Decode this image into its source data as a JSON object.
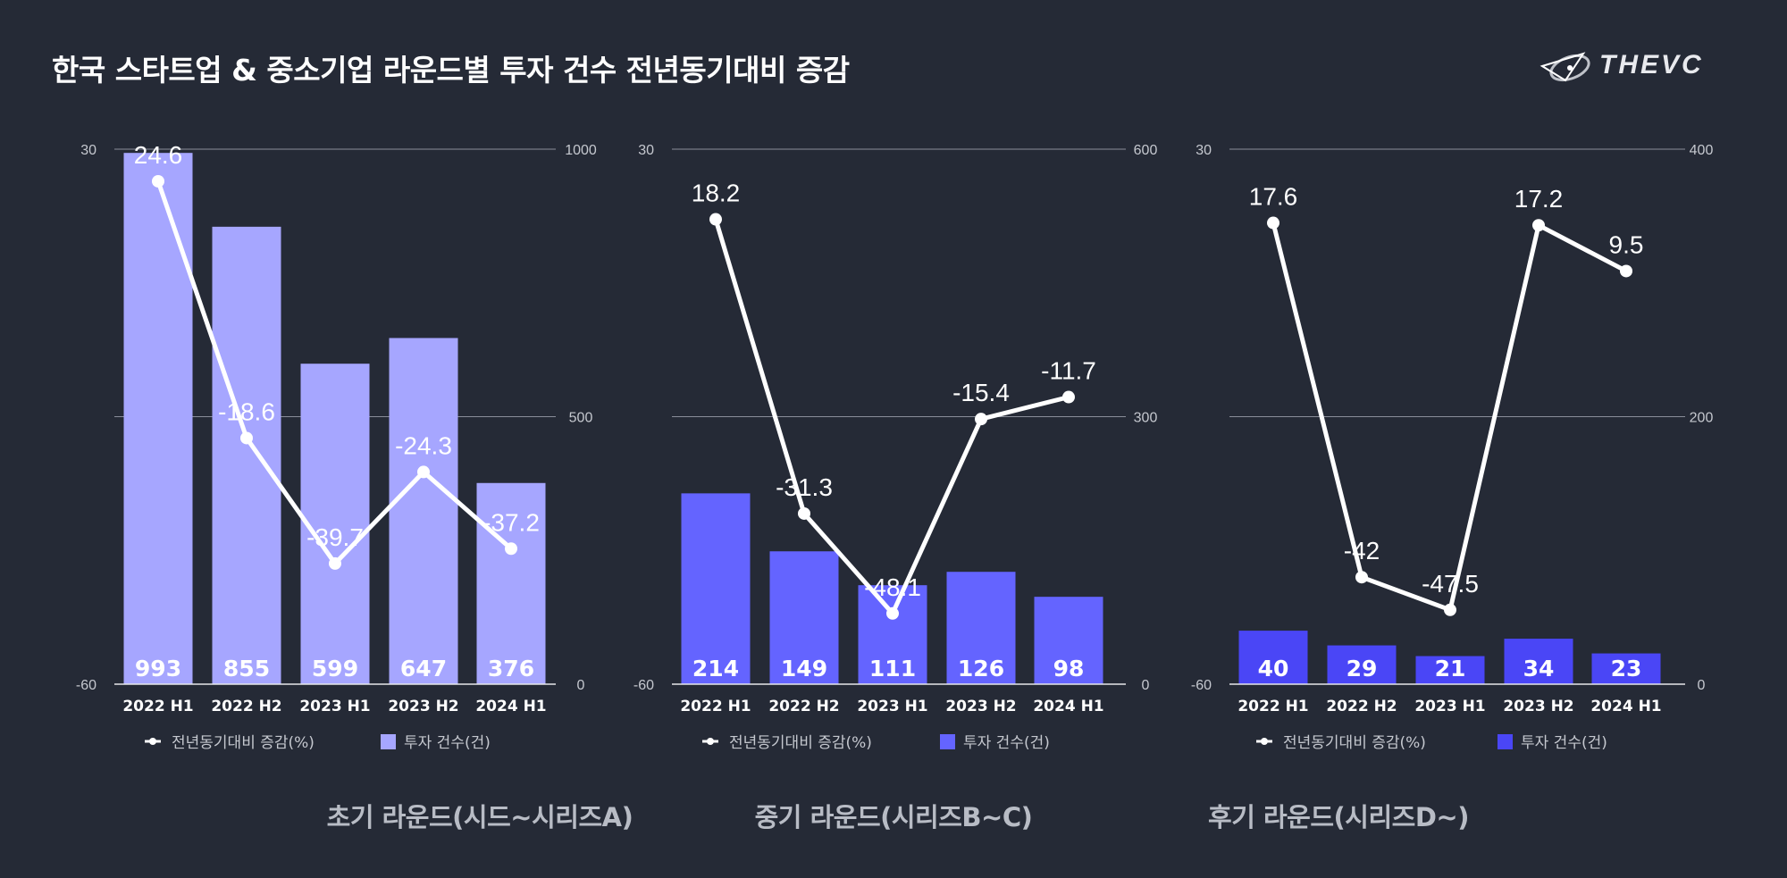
{
  "title": "한국 스타트업 & 중소기업 라운드별 투자 건수 전년동기대비 증감",
  "logo": {
    "text": "THEVC"
  },
  "colors": {
    "background": "#252a36",
    "line": "#ffffff",
    "grid": "#8a8e99",
    "axis_text": "#c5c8cf",
    "category_text": "#ffffff"
  },
  "chart_data": [
    {
      "type": "bar",
      "panel_label": "초기 라운드(시드~시리즈A)",
      "categories": [
        "2022 H1",
        "2022 H2",
        "2023 H1",
        "2023 H2",
        "2024 H1"
      ],
      "series": [
        {
          "name": "투자 건수(건)",
          "type": "bar",
          "axis": "right",
          "color": "#a6a6ff",
          "values": [
            993,
            855,
            599,
            647,
            376
          ]
        },
        {
          "name": "전년동기대비 증감(%)",
          "type": "line",
          "axis": "left",
          "color": "#ffffff",
          "values": [
            24.6,
            -18.6,
            -39.7,
            -24.3,
            -37.2
          ]
        }
      ],
      "y_left": {
        "lim": [
          -60,
          30
        ],
        "ticks": [
          "30",
          "-60"
        ]
      },
      "y_right": {
        "lim": [
          0,
          1000
        ],
        "ticks": [
          "1000",
          "500",
          "0"
        ]
      }
    },
    {
      "type": "bar",
      "panel_label": "중기 라운드(시리즈B~C)",
      "categories": [
        "2022 H1",
        "2022 H2",
        "2023 H1",
        "2023 H2",
        "2024 H1"
      ],
      "series": [
        {
          "name": "투자 건수(건)",
          "type": "bar",
          "axis": "right",
          "color": "#6464ff",
          "values": [
            214,
            149,
            111,
            126,
            98
          ]
        },
        {
          "name": "전년동기대비 증감(%)",
          "type": "line",
          "axis": "left",
          "color": "#ffffff",
          "values": [
            18.2,
            -31.3,
            -48.1,
            -15.4,
            -11.7
          ]
        }
      ],
      "y_left": {
        "lim": [
          -60,
          30
        ],
        "ticks": [
          "30",
          "-60"
        ]
      },
      "y_right": {
        "lim": [
          0,
          600
        ],
        "ticks": [
          "600",
          "300",
          "0"
        ]
      }
    },
    {
      "type": "bar",
      "panel_label": "후기 라운드(시리즈D~)",
      "categories": [
        "2022 H1",
        "2022 H2",
        "2023 H1",
        "2023 H2",
        "2024 H1"
      ],
      "series": [
        {
          "name": "투자 건수(건)",
          "type": "bar",
          "axis": "right",
          "color": "#4a46f6",
          "values": [
            40,
            29,
            21,
            34,
            23
          ]
        },
        {
          "name": "전년동기대비 증감(%)",
          "type": "line",
          "axis": "left",
          "color": "#ffffff",
          "values": [
            17.6,
            -42,
            -47.5,
            17.2,
            9.5
          ]
        }
      ],
      "y_left": {
        "lim": [
          -60,
          30
        ],
        "ticks": [
          "30",
          "-60"
        ]
      },
      "y_right": {
        "lim": [
          0,
          400
        ],
        "ticks": [
          "400",
          "200",
          "0"
        ]
      }
    }
  ]
}
